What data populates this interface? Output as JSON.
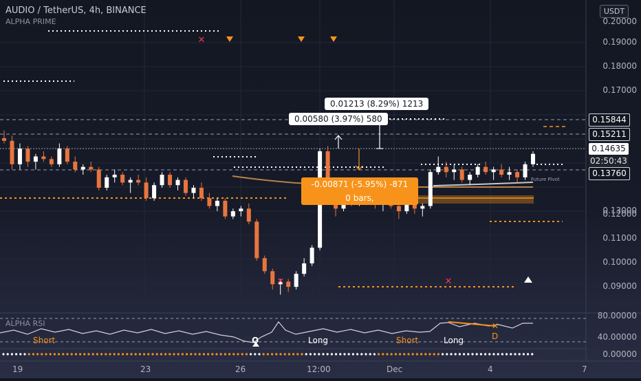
{
  "header": {
    "symbol_title": "AUDIO / TetherUS, 4h, BINANCE",
    "indicator_name": "ALPHA PRIME",
    "currency": "USDT"
  },
  "price_axis": {
    "labels": [
      "0.20000",
      "0.19000",
      "0.18000",
      "0.17000",
      "0.15844",
      "0.15211",
      "0.14635",
      "02:50:43",
      "0.13760",
      "0.13000",
      "0.12000",
      "0.11000",
      "0.10000",
      "0.09000"
    ],
    "current_price_tag": "0.14635",
    "countdown": "02:50:43",
    "upper_tag": "0.15844",
    "mid_tag": "0.15211",
    "lower_tag": "0.13760"
  },
  "rsi_axis": {
    "labels": [
      "80.00000",
      "40.00000",
      "0.00000"
    ]
  },
  "time_axis": {
    "labels": [
      "19",
      "23",
      "26",
      "12:00",
      "Dec",
      "4",
      "7"
    ]
  },
  "measure_boxes": {
    "top": "0.01213 (8.29%) 1213",
    "middle": "0.00580 (3.97%) 580",
    "orange_line1": "-0.00871 (-5.95%) -871",
    "orange_line2": "0 bars,"
  },
  "rsi_panel": {
    "label": "ALPHA RSI",
    "markers": [
      "Short",
      "Long",
      "Short",
      "Long"
    ],
    "letter_o": "O",
    "letter_d": "D"
  },
  "future_label": "Future Pivot",
  "colors": {
    "background": "#131722",
    "bull": "#ffffff",
    "bear": "#e8753f",
    "accent": "#f7931a",
    "sell_mark": "#f23645"
  },
  "chart_data": {
    "type": "candlestick",
    "y_range": [
      0.085,
      0.205
    ],
    "candles": [
      [
        0.152,
        0.155,
        0.15,
        0.151
      ],
      [
        0.151,
        0.153,
        0.14,
        0.142
      ],
      [
        0.142,
        0.15,
        0.14,
        0.148
      ],
      [
        0.148,
        0.149,
        0.141,
        0.143
      ],
      [
        0.143,
        0.146,
        0.14,
        0.145
      ],
      [
        0.145,
        0.147,
        0.143,
        0.144
      ],
      [
        0.144,
        0.145,
        0.141,
        0.142
      ],
      [
        0.142,
        0.15,
        0.141,
        0.148
      ],
      [
        0.148,
        0.149,
        0.142,
        0.143
      ],
      [
        0.143,
        0.145,
        0.139,
        0.14
      ],
      [
        0.14,
        0.142,
        0.138,
        0.141
      ],
      [
        0.141,
        0.143,
        0.139,
        0.14
      ],
      [
        0.14,
        0.141,
        0.132,
        0.133
      ],
      [
        0.133,
        0.138,
        0.132,
        0.137
      ],
      [
        0.137,
        0.14,
        0.135,
        0.138
      ],
      [
        0.138,
        0.139,
        0.134,
        0.135
      ],
      [
        0.135,
        0.137,
        0.131,
        0.136
      ],
      [
        0.136,
        0.138,
        0.134,
        0.135
      ],
      [
        0.135,
        0.137,
        0.128,
        0.129
      ],
      [
        0.129,
        0.135,
        0.128,
        0.134
      ],
      [
        0.134,
        0.139,
        0.133,
        0.138
      ],
      [
        0.138,
        0.139,
        0.133,
        0.134
      ],
      [
        0.134,
        0.137,
        0.132,
        0.136
      ],
      [
        0.136,
        0.137,
        0.13,
        0.131
      ],
      [
        0.131,
        0.134,
        0.129,
        0.133
      ],
      [
        0.133,
        0.135,
        0.128,
        0.129
      ],
      [
        0.129,
        0.131,
        0.125,
        0.126
      ],
      [
        0.126,
        0.129,
        0.124,
        0.128
      ],
      [
        0.128,
        0.129,
        0.121,
        0.122
      ],
      [
        0.122,
        0.125,
        0.121,
        0.124
      ],
      [
        0.124,
        0.126,
        0.122,
        0.125
      ],
      [
        0.125,
        0.127,
        0.119,
        0.12
      ],
      [
        0.12,
        0.121,
        0.105,
        0.106
      ],
      [
        0.106,
        0.107,
        0.1,
        0.101
      ],
      [
        0.101,
        0.102,
        0.094,
        0.096
      ],
      [
        0.096,
        0.098,
        0.092,
        0.097
      ],
      [
        0.097,
        0.098,
        0.093,
        0.095
      ],
      [
        0.095,
        0.101,
        0.094,
        0.1
      ],
      [
        0.1,
        0.106,
        0.099,
        0.104
      ],
      [
        0.104,
        0.111,
        0.103,
        0.11
      ],
      [
        0.11,
        0.148,
        0.109,
        0.147
      ],
      [
        0.147,
        0.149,
        0.127,
        0.128
      ],
      [
        0.128,
        0.13,
        0.122,
        0.125
      ],
      [
        0.125,
        0.131,
        0.124,
        0.13
      ],
      [
        0.13,
        0.133,
        0.126,
        0.128
      ],
      [
        0.128,
        0.132,
        0.126,
        0.131
      ],
      [
        0.131,
        0.134,
        0.128,
        0.13
      ],
      [
        0.13,
        0.131,
        0.125,
        0.127
      ],
      [
        0.127,
        0.129,
        0.124,
        0.128
      ],
      [
        0.128,
        0.13,
        0.125,
        0.126
      ],
      [
        0.126,
        0.127,
        0.121,
        0.124
      ],
      [
        0.124,
        0.128,
        0.123,
        0.127
      ],
      [
        0.127,
        0.129,
        0.123,
        0.125
      ],
      [
        0.125,
        0.127,
        0.122,
        0.126
      ],
      [
        0.126,
        0.14,
        0.125,
        0.139
      ],
      [
        0.139,
        0.145,
        0.138,
        0.141
      ],
      [
        0.141,
        0.143,
        0.137,
        0.139
      ],
      [
        0.139,
        0.142,
        0.136,
        0.14
      ],
      [
        0.14,
        0.141,
        0.135,
        0.136
      ],
      [
        0.136,
        0.139,
        0.134,
        0.138
      ],
      [
        0.138,
        0.142,
        0.137,
        0.141
      ],
      [
        0.141,
        0.143,
        0.138,
        0.139
      ],
      [
        0.139,
        0.141,
        0.136,
        0.14
      ],
      [
        0.14,
        0.142,
        0.137,
        0.138
      ],
      [
        0.138,
        0.141,
        0.136,
        0.139
      ],
      [
        0.139,
        0.14,
        0.135,
        0.137
      ],
      [
        0.137,
        0.143,
        0.136,
        0.142
      ],
      [
        0.142,
        0.147,
        0.141,
        0.146
      ]
    ]
  }
}
